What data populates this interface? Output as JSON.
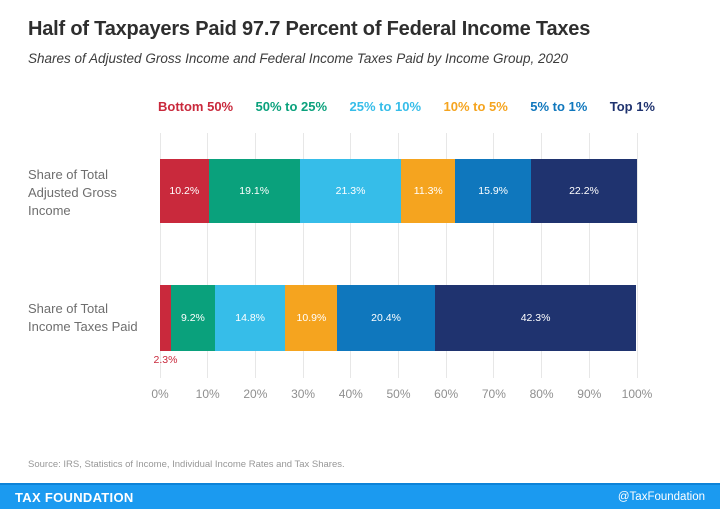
{
  "header": {
    "title": "Half of Taxpayers Paid 97.7 Percent of Federal Income Taxes",
    "subtitle": "Shares of Adjusted Gross Income and Federal Income Taxes Paid by Income Group, 2020"
  },
  "legend": {
    "items": [
      {
        "label": "Bottom 50%",
        "color": "#c9293c"
      },
      {
        "label": "50% to 25%",
        "color": "#0aa17c"
      },
      {
        "label": "25% to 10%",
        "color": "#36bde9"
      },
      {
        "label": "10% to 5%",
        "color": "#f5a41f"
      },
      {
        "label": "5% to 1%",
        "color": "#0f77bd"
      },
      {
        "label": "Top 1%",
        "color": "#1f336f"
      }
    ]
  },
  "chart_data": {
    "type": "bar",
    "stacked": true,
    "orientation": "horizontal",
    "title": "Half of Taxpayers Paid 97.7 Percent of Federal Income Taxes",
    "subtitle": "Shares of Adjusted Gross Income and Federal Income Taxes Paid by Income Group, 2020",
    "categories": [
      "Bottom 50%",
      "50% to 25%",
      "25% to 10%",
      "10% to 5%",
      "5% to 1%",
      "Top 1%"
    ],
    "colors": [
      "#c9293c",
      "#0aa17c",
      "#36bde9",
      "#f5a41f",
      "#0f77bd",
      "#1f336f"
    ],
    "series": [
      {
        "name": "Share of Total Adjusted Gross Income",
        "label_lines": [
          "Share of Total",
          "Adjusted Gross",
          "Income"
        ],
        "values": [
          10.2,
          19.1,
          21.3,
          11.3,
          15.9,
          22.2
        ],
        "labels": [
          "10.2%",
          "19.1%",
          "21.3%",
          "11.3%",
          "15.9%",
          "22.2%"
        ]
      },
      {
        "name": "Share of Total Income Taxes Paid",
        "label_lines": [
          "Share of Total",
          "Income Taxes Paid"
        ],
        "values": [
          2.3,
          9.2,
          14.8,
          10.9,
          20.4,
          42.3
        ],
        "labels": [
          "2.3%",
          "9.2%",
          "14.8%",
          "10.9%",
          "20.4%",
          "42.3%"
        ],
        "outside_label_index": 0
      }
    ],
    "x_ticks": [
      "0%",
      "10%",
      "20%",
      "30%",
      "40%",
      "50%",
      "60%",
      "70%",
      "80%",
      "90%",
      "100%"
    ],
    "xlim": [
      0,
      100
    ],
    "grid": true,
    "legend_position": "top",
    "unit": "percent"
  },
  "source": {
    "text": "Source: IRS, Statistics of Income, Individual Income Rates and Tax Shares."
  },
  "footer": {
    "brand": "TAX FOUNDATION",
    "handle": "@TaxFoundation",
    "bar_color": "#1b9af0",
    "border_color": "#0d83d8"
  }
}
